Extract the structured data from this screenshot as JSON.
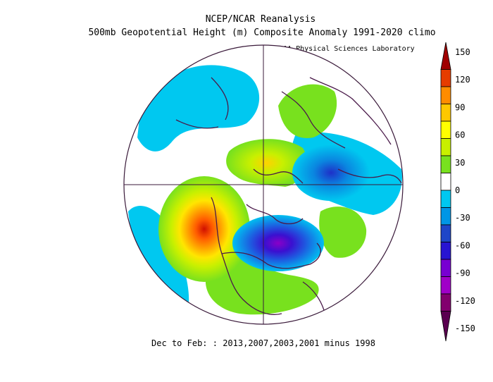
{
  "header": {
    "title": "NCEP/NCAR Reanalysis",
    "subtitle": "500mb Geopotential Height (m) Composite Anomaly 1991-2020 climo",
    "credit": "NOAA Physical Sciences Laboratory"
  },
  "footer": {
    "caption": "Dec to Feb: : 2013,2007,2003,2001 minus 1998"
  },
  "colorbar": {
    "ticks": [
      "150",
      "120",
      "90",
      "60",
      "30",
      "0",
      "-30",
      "-60",
      "-90",
      "-120",
      "-150"
    ],
    "colors": [
      "#a00000",
      "#e63c00",
      "#ff8c00",
      "#ffc800",
      "#ffff00",
      "#c8f000",
      "#78e11e",
      "#ffffff",
      "#00c8f0",
      "#0096e6",
      "#1e46c8",
      "#2814d2",
      "#7800d2",
      "#a000c8",
      "#82006e",
      "#5a0050"
    ]
  },
  "map": {
    "projection": "polar-stereographic",
    "anomaly_features": [
      {
        "name": "pacific-positive-center",
        "sign": "positive",
        "approx_peak": 150,
        "region": "North Pacific / Gulf of Alaska"
      },
      {
        "name": "hudson-bay-negative-center",
        "sign": "negative",
        "approx_peak": -100,
        "region": "Hudson Bay / Canada"
      },
      {
        "name": "siberia-negative-center",
        "sign": "negative",
        "approx_peak": -60,
        "region": "Siberia / Central Asia"
      },
      {
        "name": "arctic-positive",
        "sign": "positive",
        "approx_peak": 70,
        "region": "Arctic / Kara Sea"
      }
    ]
  }
}
